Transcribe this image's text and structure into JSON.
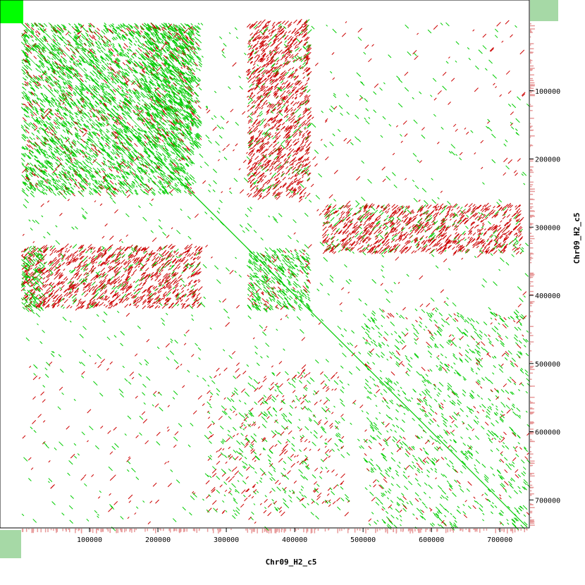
{
  "chart_data": {
    "type": "scatter",
    "title": "",
    "xlabel": "Chr09_H2_c5",
    "ylabel": "Chr09_H2_c5",
    "xlim": [
      0,
      740000
    ],
    "ylim": [
      0,
      740000
    ],
    "y_inverted": true,
    "x_ticks": [
      100000,
      200000,
      300000,
      400000,
      500000,
      600000,
      700000
    ],
    "x_tick_labels": [
      "100000",
      "200000",
      "300000",
      "400000",
      "500000",
      "600000",
      "700000"
    ],
    "y_ticks": [
      100000,
      200000,
      300000,
      400000,
      500000,
      600000,
      700000
    ],
    "y_tick_labels": [
      "100000",
      "200000",
      "300000",
      "400000",
      "500000",
      "600000",
      "700000"
    ],
    "grid": false,
    "legend": "none",
    "colors": {
      "forward": "#00cc00",
      "reverse": "#cc0000",
      "corner_marker": "#00ff00",
      "corner_box": "#a6d9a6",
      "edge_density": "#e89a9a",
      "axis": "#000000",
      "background": "#ffffff"
    },
    "series": [
      {
        "name": "",
        "strand": "forward",
        "values": [
          {
            "x": [
              0,
              740000
            ],
            "y": [
              0,
              740000
            ]
          },
          {
            "x": [
              0,
              260000
            ],
            "y": [
              0,
              260000
            ]
          }
        ]
      }
    ],
    "blocks": [
      {
        "strand": "forward",
        "x": [
          0,
          250000
        ],
        "y": [
          0,
          250000
        ]
      },
      {
        "strand": "forward",
        "x": [
          180000,
          260000
        ],
        "y": [
          0,
          180000
        ]
      },
      {
        "strand": "reverse",
        "x": [
          330000,
          420000
        ],
        "y": [
          0,
          260000
        ]
      },
      {
        "strand": "reverse",
        "x": [
          0,
          260000
        ],
        "y": [
          330000,
          420000
        ]
      },
      {
        "strand": "forward",
        "x": [
          330000,
          420000
        ],
        "y": [
          330000,
          420000
        ]
      },
      {
        "strand": "forward",
        "x": [
          0,
          30000
        ],
        "y": [
          330000,
          420000
        ]
      },
      {
        "strand": "reverse",
        "x": [
          440000,
          730000
        ],
        "y": [
          270000,
          340000
        ]
      },
      {
        "strand": "mixed",
        "x": [
          270000,
          470000
        ],
        "y": [
          510000,
          720000
        ]
      },
      {
        "strand": "forward",
        "x": [
          500000,
          740000
        ],
        "y": [
          420000,
          740000
        ]
      }
    ]
  }
}
